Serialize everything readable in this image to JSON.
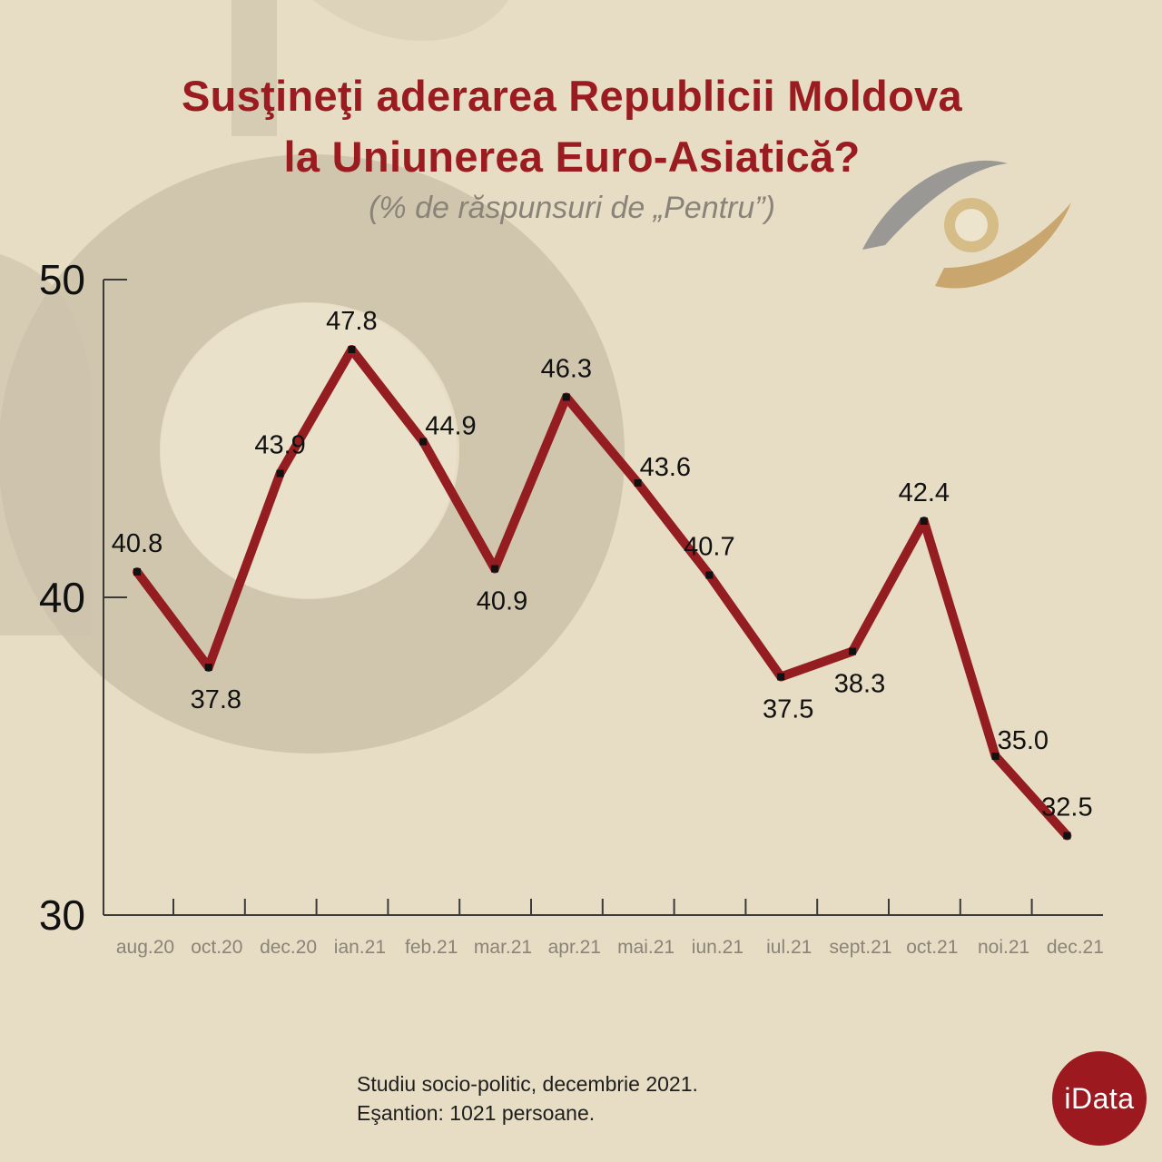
{
  "title_line1": "Susţineţi aderarea Republicii Moldova",
  "title_line2": "la Uniunerea Euro-Asiatică?",
  "subtitle": "(% de răspunsuri de „Pentru”)",
  "footnote_line1": "Studiu socio-politic, decembrie 2021.",
  "footnote_line2": "Eşantion: 1021 persoane.",
  "logo_text": "iData",
  "colors": {
    "background": "#e7dcc4",
    "accent": "#9a1c20",
    "line": "#931d21",
    "axis": "#3a3a3a",
    "tick_label": "#8a8478"
  },
  "chart_data": {
    "type": "line",
    "title": "Susţineţi aderarea Republicii Moldova la Uniunerea Euro-Asiatică?",
    "subtitle": "(% de răspunsuri de „Pentru”)",
    "xlabel": "",
    "ylabel": "",
    "categories": [
      "aug.20",
      "oct.20",
      "dec.20",
      "ian.21",
      "feb.21",
      "mar.21",
      "apr.21",
      "mai.21",
      "iun.21",
      "iul.21",
      "sept.21",
      "oct.21",
      "noi.21",
      "dec.21"
    ],
    "series": [
      {
        "name": "Pentru",
        "values": [
          40.8,
          37.8,
          43.9,
          47.8,
          44.9,
          40.9,
          46.3,
          43.6,
          40.7,
          37.5,
          38.3,
          42.4,
          35.0,
          32.5
        ],
        "labels": [
          "40.8",
          "37.8",
          "43.9",
          "47.8",
          "44.9",
          "40.9",
          "46.3",
          "43.6",
          "40.7",
          "37.5",
          "38.3",
          "42.4",
          "35.0",
          "32.5"
        ],
        "label_positions": [
          "above",
          "below",
          "above",
          "above",
          "right",
          "below",
          "above",
          "right",
          "above",
          "below",
          "below",
          "above",
          "right",
          "above"
        ]
      }
    ],
    "ylim": [
      30,
      50
    ],
    "yticks": [
      30,
      40,
      50
    ],
    "ytick_labels": [
      "30",
      "40",
      "50"
    ],
    "grid": false,
    "legend": "none"
  }
}
